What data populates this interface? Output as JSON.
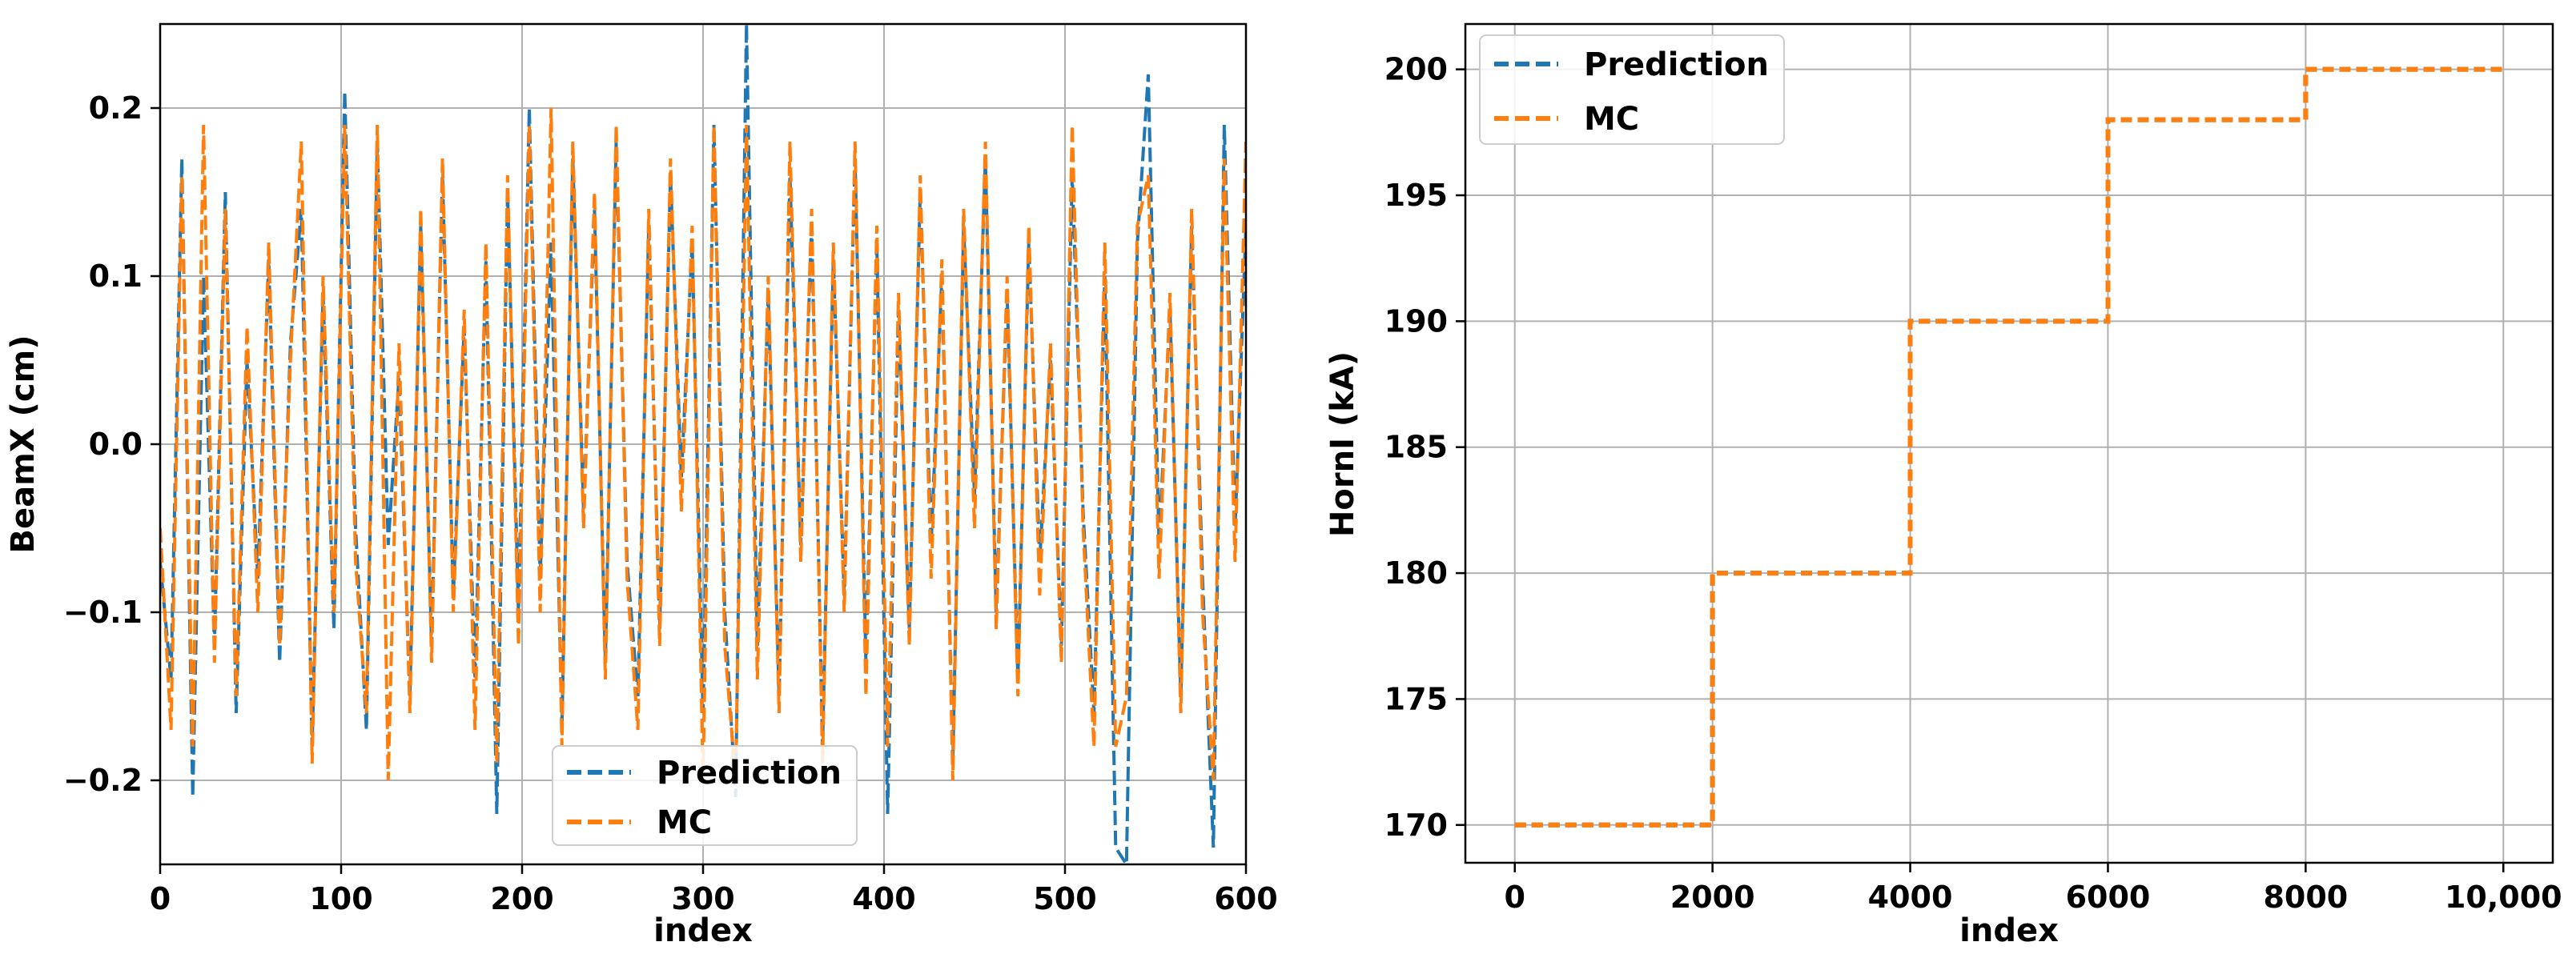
{
  "chart_data": [
    {
      "type": "line",
      "xlabel": "index",
      "ylabel": "BeamX (cm)",
      "xlim": [
        0,
        600
      ],
      "ylim": [
        -0.25,
        0.25
      ],
      "xticks": [
        0,
        100,
        200,
        300,
        400,
        500,
        600
      ],
      "xtick_labels": [
        "0",
        "100",
        "200",
        "300",
        "400",
        "500",
        "600"
      ],
      "yticks": [
        -0.2,
        -0.1,
        0.0,
        0.1,
        0.2
      ],
      "ytick_labels": [
        "−0.2",
        "−0.1",
        "0.0",
        "0.1",
        "0.2"
      ],
      "grid": true,
      "legend_position": "bottom-center",
      "series": [
        {
          "name": "Prediction",
          "color": "#1f77b4",
          "linestyle": "dashed",
          "x": [
            0,
            6,
            12,
            18,
            24,
            30,
            36,
            42,
            48,
            54,
            60,
            66,
            72,
            78,
            84,
            90,
            96,
            102,
            108,
            114,
            120,
            126,
            132,
            138,
            144,
            150,
            156,
            162,
            168,
            174,
            180,
            186,
            192,
            198,
            204,
            210,
            216,
            222,
            228,
            234,
            240,
            246,
            252,
            258,
            264,
            270,
            276,
            282,
            288,
            294,
            300,
            306,
            312,
            318,
            324,
            330,
            336,
            342,
            348,
            354,
            360,
            366,
            372,
            378,
            384,
            390,
            396,
            402,
            408,
            414,
            420,
            426,
            432,
            438,
            444,
            450,
            456,
            462,
            468,
            474,
            480,
            486,
            492,
            498,
            504,
            510,
            516,
            522,
            528,
            534,
            540,
            546,
            552,
            558,
            564,
            570,
            576,
            582,
            588,
            594,
            600
          ],
          "values": [
            -0.07,
            -0.14,
            0.17,
            -0.21,
            0.1,
            -0.12,
            0.15,
            -0.16,
            0.05,
            -0.08,
            0.11,
            -0.13,
            0.06,
            0.14,
            -0.18,
            0.09,
            -0.11,
            0.21,
            -0.05,
            -0.17,
            0.18,
            -0.06,
            0.04,
            -0.15,
            0.13,
            -0.12,
            0.16,
            -0.09,
            0.07,
            -0.14,
            0.11,
            -0.22,
            0.15,
            -0.1,
            0.2,
            -0.08,
            0.12,
            -0.17,
            0.17,
            -0.04,
            0.14,
            -0.13,
            0.18,
            -0.07,
            -0.15,
            0.13,
            -0.11,
            0.16,
            -0.02,
            0.12,
            -0.16,
            0.19,
            -0.1,
            -0.21,
            0.25,
            -0.12,
            0.09,
            -0.15,
            0.16,
            -0.06,
            0.13,
            -0.18,
            0.11,
            -0.09,
            0.17,
            -0.13,
            0.12,
            -0.22,
            0.08,
            -0.11,
            0.15,
            -0.06,
            0.1,
            -0.19,
            0.13,
            -0.03,
            0.17,
            -0.1,
            0.09,
            -0.14,
            0.12,
            -0.07,
            0.05,
            -0.12,
            0.16,
            -0.04,
            -0.16,
            0.1,
            -0.24,
            -0.25,
            0.12,
            0.22,
            -0.06,
            0.08,
            -0.15,
            0.13,
            -0.08,
            -0.24,
            0.19,
            -0.05,
            0.13
          ]
        },
        {
          "name": "MC",
          "color": "#ff7f0e",
          "linestyle": "dashed",
          "x": [
            0,
            6,
            12,
            18,
            24,
            30,
            36,
            42,
            48,
            54,
            60,
            66,
            72,
            78,
            84,
            90,
            96,
            102,
            108,
            114,
            120,
            126,
            132,
            138,
            144,
            150,
            156,
            162,
            168,
            174,
            180,
            186,
            192,
            198,
            204,
            210,
            216,
            222,
            228,
            234,
            240,
            246,
            252,
            258,
            264,
            270,
            276,
            282,
            288,
            294,
            300,
            306,
            312,
            318,
            324,
            330,
            336,
            342,
            348,
            354,
            360,
            366,
            372,
            378,
            384,
            390,
            396,
            402,
            408,
            414,
            420,
            426,
            432,
            438,
            444,
            450,
            456,
            462,
            468,
            474,
            480,
            486,
            492,
            498,
            504,
            510,
            516,
            522,
            528,
            534,
            540,
            546,
            552,
            558,
            564,
            570,
            576,
            582,
            588,
            594,
            600
          ],
          "values": [
            -0.05,
            -0.17,
            0.16,
            -0.18,
            0.19,
            -0.13,
            0.14,
            -0.15,
            0.07,
            -0.1,
            0.12,
            -0.12,
            0.05,
            0.18,
            -0.19,
            0.1,
            -0.1,
            0.19,
            -0.07,
            -0.16,
            0.19,
            -0.2,
            0.06,
            -0.16,
            0.14,
            -0.13,
            0.17,
            -0.1,
            0.08,
            -0.17,
            0.12,
            -0.19,
            0.16,
            -0.12,
            0.19,
            -0.1,
            0.2,
            -0.18,
            0.18,
            -0.05,
            0.15,
            -0.14,
            0.19,
            -0.08,
            -0.17,
            0.14,
            -0.12,
            0.17,
            -0.04,
            0.13,
            -0.2,
            0.19,
            -0.12,
            -0.2,
            0.19,
            -0.14,
            0.1,
            -0.16,
            0.18,
            -0.07,
            0.14,
            -0.19,
            0.12,
            -0.1,
            0.18,
            -0.15,
            0.13,
            -0.18,
            0.09,
            -0.12,
            0.16,
            -0.08,
            0.11,
            -0.2,
            0.14,
            -0.05,
            0.18,
            -0.11,
            0.1,
            -0.15,
            0.13,
            -0.09,
            0.06,
            -0.13,
            0.19,
            -0.05,
            -0.18,
            0.12,
            -0.18,
            -0.15,
            0.13,
            0.16,
            -0.08,
            0.09,
            -0.16,
            0.14,
            -0.1,
            -0.2,
            0.17,
            -0.07,
            0.18
          ]
        }
      ]
    },
    {
      "type": "line",
      "xlabel": "index",
      "ylabel": "HornI (kA)",
      "xlim": [
        -500,
        10500
      ],
      "ylim": [
        168.5,
        201.8
      ],
      "xticks": [
        0,
        2000,
        4000,
        6000,
        8000,
        10000
      ],
      "xtick_labels": [
        "0",
        "2000",
        "4000",
        "6000",
        "8000",
        "10,000"
      ],
      "yticks": [
        170,
        175,
        180,
        185,
        190,
        195,
        200
      ],
      "ytick_labels": [
        "170",
        "175",
        "180",
        "185",
        "190",
        "195",
        "200"
      ],
      "grid": true,
      "legend_position": "top-left",
      "series": [
        {
          "name": "Prediction",
          "color": "#1f77b4",
          "linestyle": "dashed",
          "x": [
            0,
            2000,
            2000,
            4000,
            4000,
            6000,
            6000,
            8000,
            8000,
            10000
          ],
          "values": [
            170,
            170,
            180,
            180,
            190,
            190,
            198,
            198,
            200,
            200
          ]
        },
        {
          "name": "MC",
          "color": "#ff7f0e",
          "linestyle": "dashed",
          "x": [
            0,
            2000,
            2000,
            4000,
            4000,
            6000,
            6000,
            8000,
            8000,
            10000
          ],
          "values": [
            170,
            170,
            180,
            180,
            190,
            190,
            198,
            198,
            200,
            200
          ]
        }
      ]
    }
  ]
}
